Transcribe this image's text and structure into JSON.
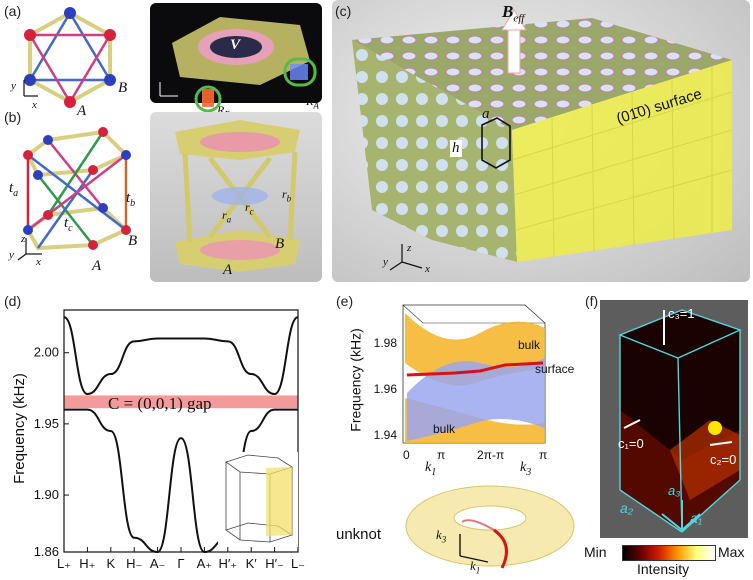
{
  "panels": {
    "a": {
      "label": "(a)",
      "vertex_a": "A",
      "vertex_b": "B",
      "axis_x": "x",
      "axis_y": "y"
    },
    "a_right": {
      "v_label": "V",
      "ra": "R",
      "ra_sub": "A",
      "rb": "R",
      "rb_sub": "B"
    },
    "b": {
      "label": "(b)",
      "ta": "t",
      "ta_sub": "a",
      "tb": "t",
      "tb_sub": "b",
      "tc": "t",
      "tc_sub": "c",
      "vertex_a": "A",
      "vertex_b": "B",
      "axis_x": "x",
      "axis_y": "y",
      "axis_z": "z"
    },
    "b_right": {
      "ra": "r",
      "ra_sub": "a",
      "rb": "r",
      "rb_sub": "b",
      "rc": "r",
      "rc_sub": "c",
      "vertex_a": "A",
      "vertex_b": "B"
    },
    "c": {
      "label": "(c)",
      "beff": "B",
      "beff_sub": "eff",
      "a": "a",
      "h": "h",
      "surface": "(01̄0) surface",
      "axis_x": "x",
      "axis_y": "y",
      "axis_z": "z"
    },
    "d": {
      "label": "(d)",
      "ylabel": "Frequency (kHz)",
      "gap_label": "C = (0,0,1) gap"
    },
    "e": {
      "label": "(e)",
      "ylabel": "Frequency (kHz)",
      "bulk_top": "bulk",
      "bulk_bottom": "bulk",
      "surface": "surface",
      "k1": "k",
      "k1_sub": "1",
      "k3": "k",
      "k3_sub": "3",
      "unknot": "unknot"
    },
    "f": {
      "label": "(f)",
      "c3": "c₃=1",
      "c1": "c₁=0",
      "c2": "c₂=0",
      "a1": "a₁",
      "a2": "a₂",
      "a3": "a₃",
      "cb_min": "Min",
      "cb_max": "Max",
      "cb_label": "Intensity"
    }
  },
  "chart_data": [
    {
      "type": "line",
      "panel": "d",
      "ylabel": "Frequency (kHz)",
      "ylim": [
        1.86,
        2.03
      ],
      "yticks": [
        1.86,
        1.9,
        1.95,
        2.0
      ],
      "ytick_labels": [
        "1.86",
        "1.90",
        "1.95",
        "2.00"
      ],
      "categories": [
        "L₊",
        "H₊",
        "K",
        "H₋",
        "A₋",
        "Γ",
        "A₊",
        "H′₊",
        "K′",
        "H′₋",
        "L₋"
      ],
      "series": [
        {
          "values": [
            2.025,
            1.971,
            1.985,
            2.008,
            2.01,
            2.01,
            2.01,
            2.008,
            1.985,
            1.971,
            2.025
          ]
        },
        {
          "values": [
            1.96,
            1.96,
            1.945,
            1.87,
            1.86,
            1.94,
            1.86,
            1.87,
            1.945,
            1.96,
            1.96
          ]
        }
      ],
      "gap_band": [
        1.961,
        1.97
      ]
    },
    {
      "type": "area",
      "panel": "e",
      "ylabel": "Frequency (kHz)",
      "ylim": [
        1.94,
        1.99
      ],
      "yticks": [
        "1.94",
        "1.96",
        "1.98"
      ],
      "xticks": [
        "0",
        "π",
        "2π-π",
        "π"
      ],
      "surface_curve": [
        1.964,
        1.966,
        1.968,
        1.97,
        1.972
      ]
    },
    {
      "type": "heatmap",
      "panel": "f",
      "colorbar": [
        "#000000",
        "#6a0000",
        "#d42000",
        "#ff9a00",
        "#ffff80",
        "#ffffff"
      ],
      "colorbar_labels": [
        "Min",
        "Max"
      ],
      "label": "Intensity"
    }
  ],
  "colors": {
    "gap": "#f59a9a",
    "bulk": "#f6b324",
    "surface": "#9aa7ee",
    "surface_line": "#d6121b",
    "frame": "#d9cf83",
    "cyan": "#4fd6e0"
  }
}
